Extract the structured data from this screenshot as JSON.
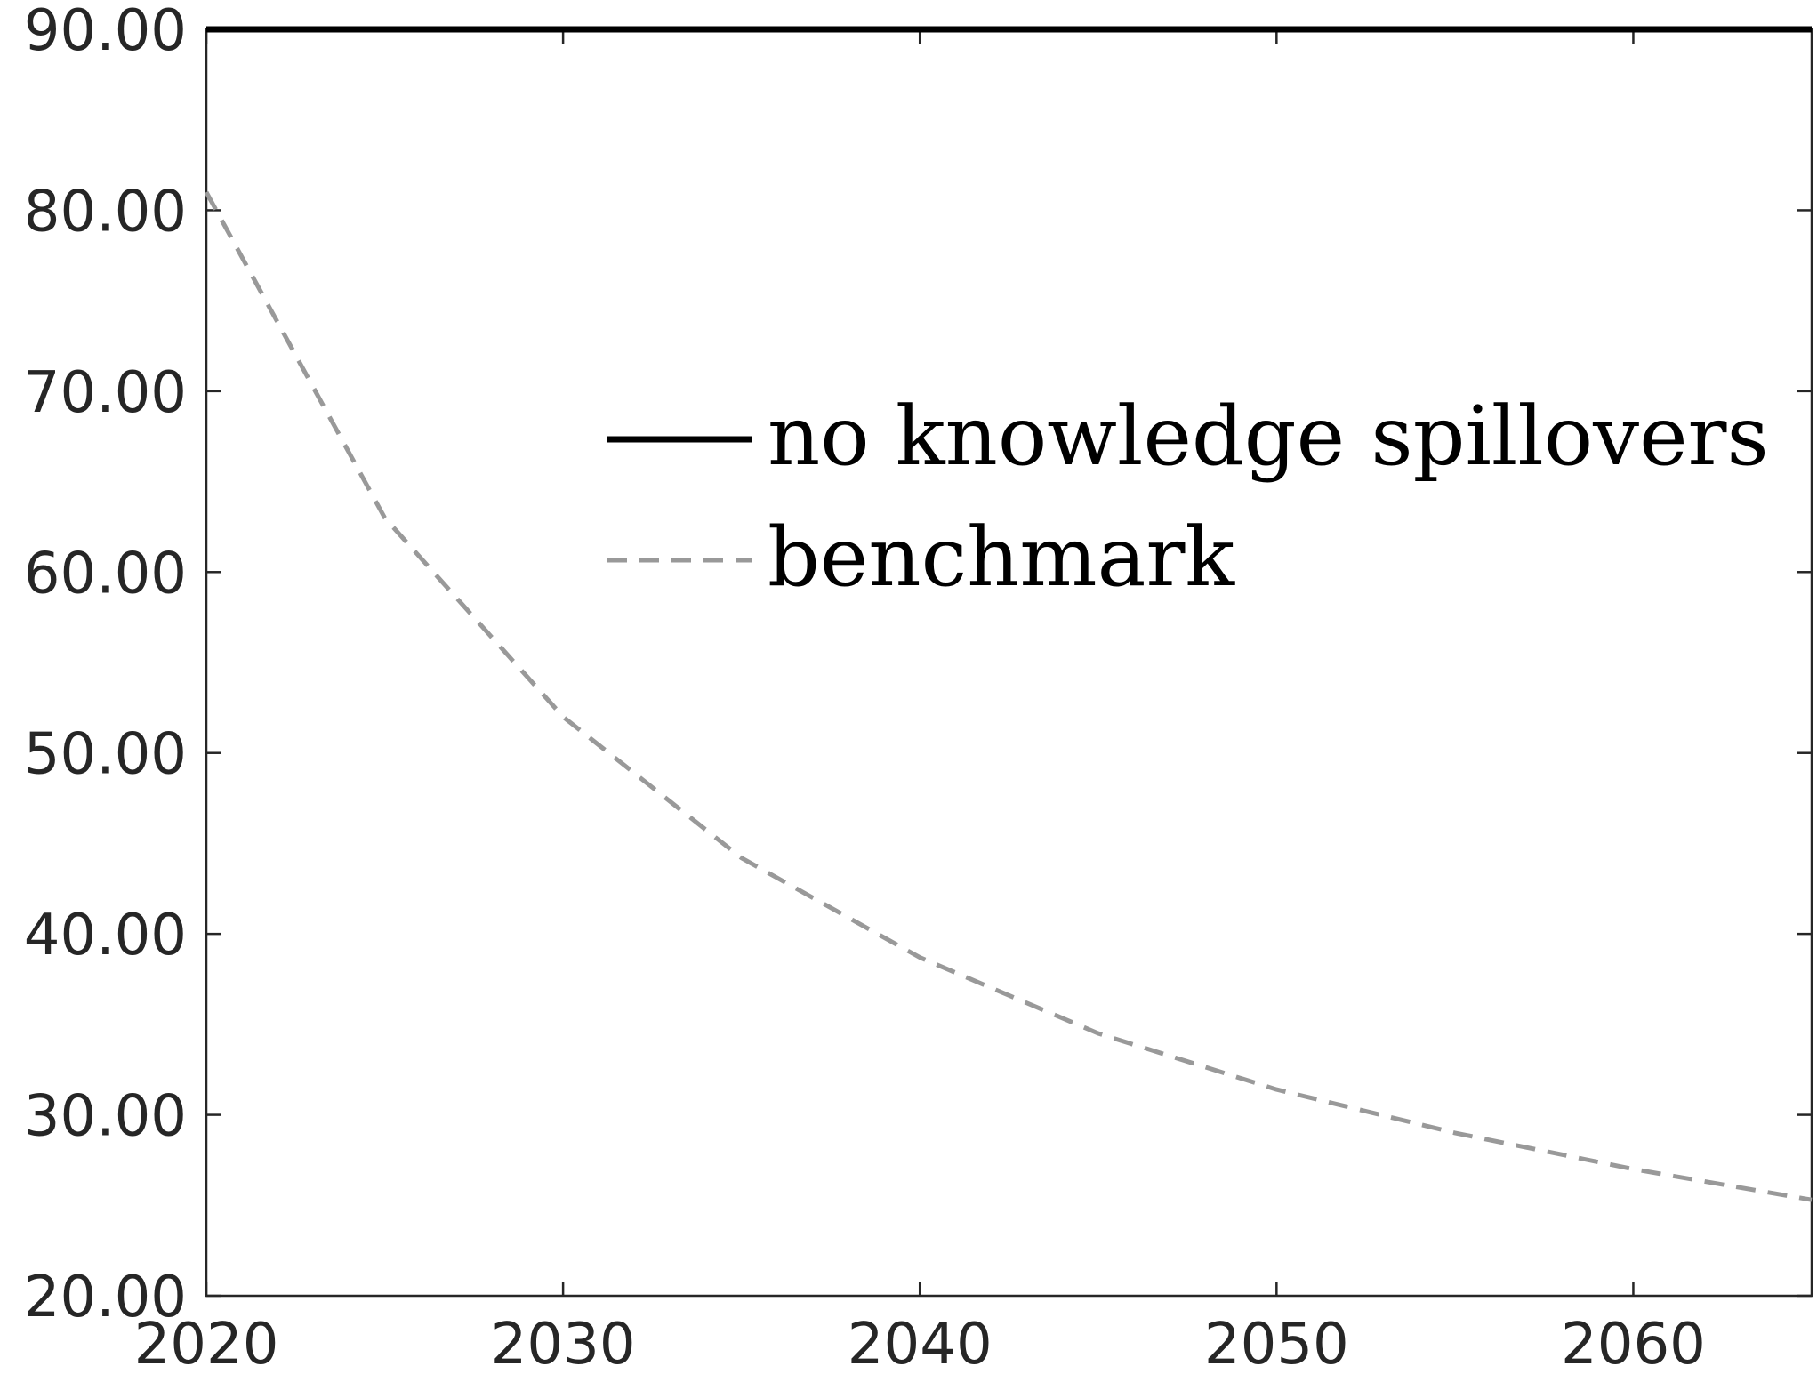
{
  "chart_data": {
    "type": "line",
    "title": "",
    "xlabel": "",
    "ylabel": "",
    "xlim": [
      2020,
      2065
    ],
    "ylim": [
      20,
      90
    ],
    "x_ticks": [
      2020,
      2030,
      2040,
      2050,
      2060
    ],
    "x_tick_labels": [
      "2020",
      "2030",
      "2040",
      "2050",
      "2060"
    ],
    "y_ticks": [
      20,
      30,
      40,
      50,
      60,
      70,
      80,
      90
    ],
    "y_tick_labels": [
      "20.00",
      "30.00",
      "40.00",
      "50.00",
      "60.00",
      "70.00",
      "80.00",
      "90.00"
    ],
    "grid": false,
    "legend_position": "upper-right",
    "series": [
      {
        "name": "no knowledge spillovers",
        "style": "solid",
        "color": "#000000",
        "x": [
          2020,
          2025,
          2030,
          2035,
          2040,
          2045,
          2050,
          2055,
          2060,
          2065
        ],
        "y": [
          90,
          90,
          90,
          90,
          90,
          90,
          90,
          90,
          90,
          90
        ]
      },
      {
        "name": "benchmark",
        "style": "dashed",
        "color": "#999999",
        "x": [
          2020,
          2025,
          2030,
          2035,
          2040,
          2045,
          2050,
          2055,
          2060,
          2065
        ],
        "y": [
          81,
          63,
          52,
          44.2,
          38.7,
          34.5,
          31.4,
          29,
          27,
          25.3
        ]
      }
    ]
  }
}
